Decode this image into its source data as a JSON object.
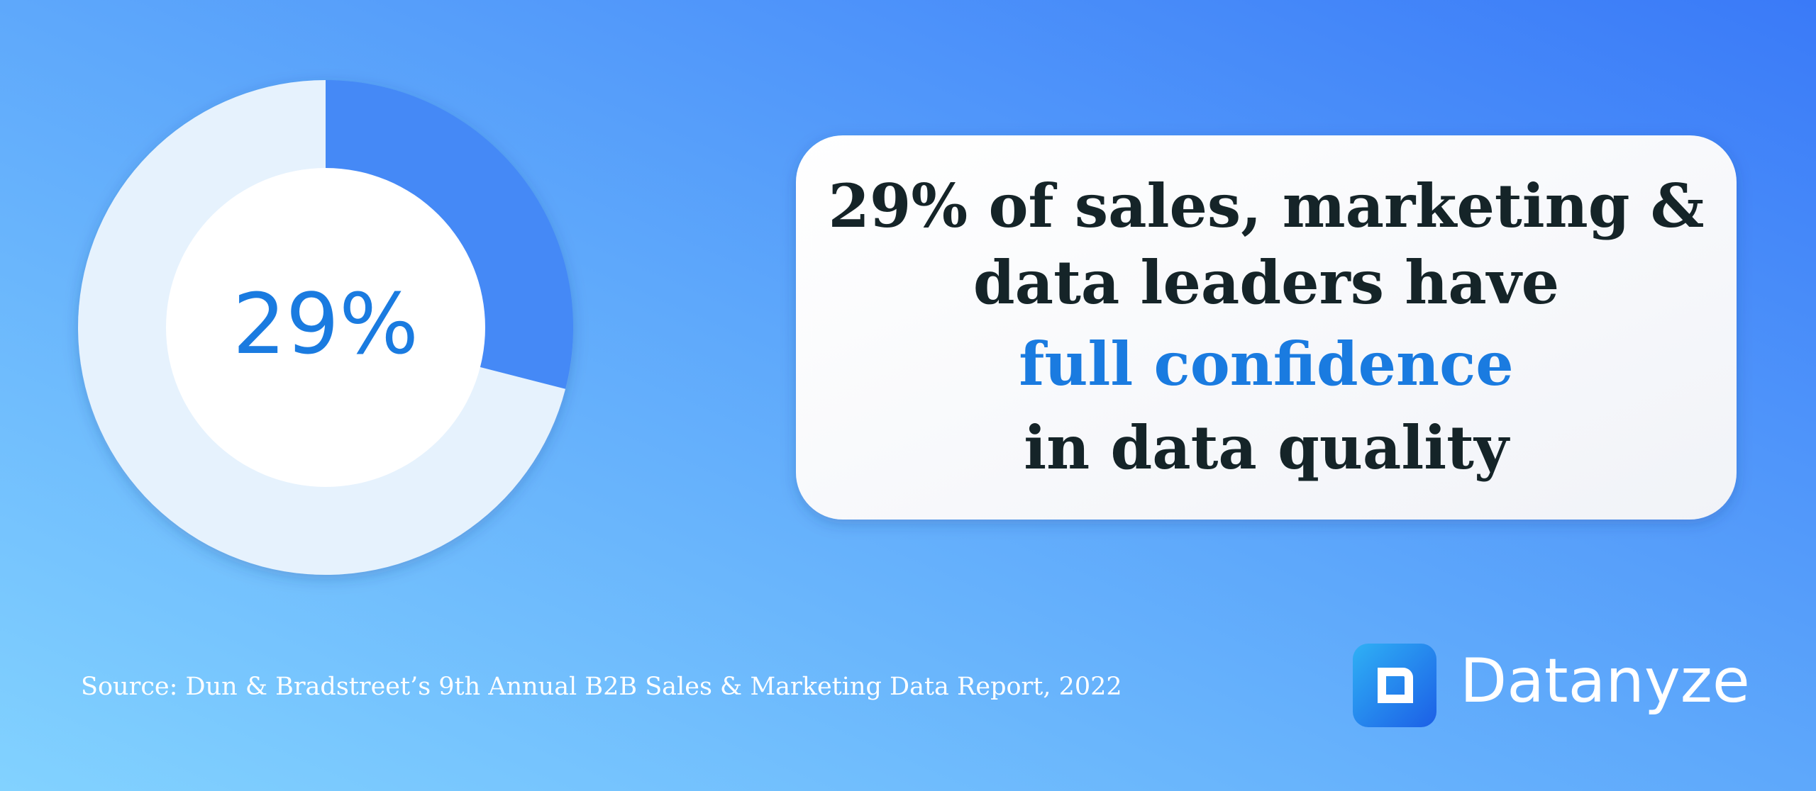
{
  "chart_data": {
    "type": "donut",
    "values": [
      29,
      71
    ],
    "value_labels": [
      "29%",
      null
    ],
    "colors": [
      "#4489f6",
      "#e6f2fd"
    ]
  },
  "callout": {
    "lines": [
      "29% of sales, marketing &",
      "data leaders have",
      "full confidence",
      "in data quality"
    ]
  },
  "source": "Source: Dun & Bradstreet’s 9th Annual B2B Sales & Marketing Data Report, 2022",
  "logo": "Datanyze"
}
